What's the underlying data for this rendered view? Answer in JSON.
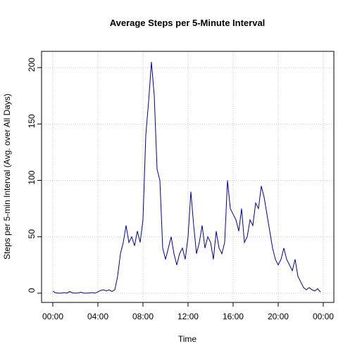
{
  "chart_data": {
    "type": "line",
    "title": "Average Steps per 5-Minute Interval",
    "xlabel": "Time",
    "ylabel": "Steps per 5-min Interval (Avg. over All Days)",
    "x": [
      0,
      0.25,
      0.5,
      0.75,
      1,
      1.25,
      1.5,
      1.75,
      2,
      2.25,
      2.5,
      2.75,
      3,
      3.25,
      3.5,
      3.75,
      4,
      4.25,
      4.5,
      4.75,
      5,
      5.25,
      5.5,
      5.75,
      6,
      6.25,
      6.5,
      6.75,
      7,
      7.25,
      7.5,
      7.75,
      8,
      8.25,
      8.5,
      8.75,
      9,
      9.25,
      9.5,
      9.75,
      10,
      10.25,
      10.5,
      10.75,
      11,
      11.25,
      11.5,
      11.75,
      12,
      12.25,
      12.5,
      12.75,
      13,
      13.25,
      13.5,
      13.75,
      14,
      14.25,
      14.5,
      14.75,
      15,
      15.25,
      15.5,
      15.75,
      16,
      16.25,
      16.5,
      16.75,
      17,
      17.25,
      17.5,
      17.75,
      18,
      18.25,
      18.5,
      18.75,
      19,
      19.25,
      19.5,
      19.75,
      20,
      20.25,
      20.5,
      20.75,
      21,
      21.25,
      21.5,
      21.75,
      22,
      22.25,
      22.5,
      22.75,
      23,
      23.25,
      23.5,
      23.75
    ],
    "series": [
      {
        "name": "Average steps",
        "color": "#0000a0",
        "values": [
          1.7,
          0.3,
          0.1,
          0.1,
          0.5,
          0.1,
          1.5,
          0.2,
          0.1,
          0.2,
          0.8,
          0.1,
          0.1,
          0.2,
          0.5,
          0.1,
          1.2,
          2.5,
          3,
          2,
          3,
          1.5,
          3,
          15,
          35,
          45,
          60,
          45,
          50,
          42,
          55,
          45,
          65,
          140,
          170,
          205,
          175,
          110,
          100,
          40,
          30,
          40,
          50,
          35,
          25,
          35,
          40,
          30,
          50,
          90,
          60,
          35,
          45,
          60,
          40,
          50,
          45,
          30,
          55,
          40,
          35,
          45,
          100,
          75,
          70,
          65,
          55,
          75,
          45,
          50,
          65,
          60,
          80,
          75,
          95,
          85,
          70,
          55,
          40,
          30,
          25,
          30,
          40,
          30,
          25,
          20,
          30,
          15,
          10,
          5,
          3,
          5,
          3,
          2,
          4,
          1
        ]
      }
    ],
    "xlim": [
      -1,
      24.94
    ],
    "ylim": [
      -8.2,
      214.4
    ],
    "xticks": [
      {
        "value": 0,
        "label": "00:00"
      },
      {
        "value": 4,
        "label": "04:00"
      },
      {
        "value": 8,
        "label": "08:00"
      },
      {
        "value": 12,
        "label": "12:00"
      },
      {
        "value": 16,
        "label": "16:00"
      },
      {
        "value": 20,
        "label": "20:00"
      },
      {
        "value": 24,
        "label": "00:00"
      }
    ],
    "yticks": [
      0,
      50,
      100,
      150,
      200
    ],
    "grid": true
  }
}
